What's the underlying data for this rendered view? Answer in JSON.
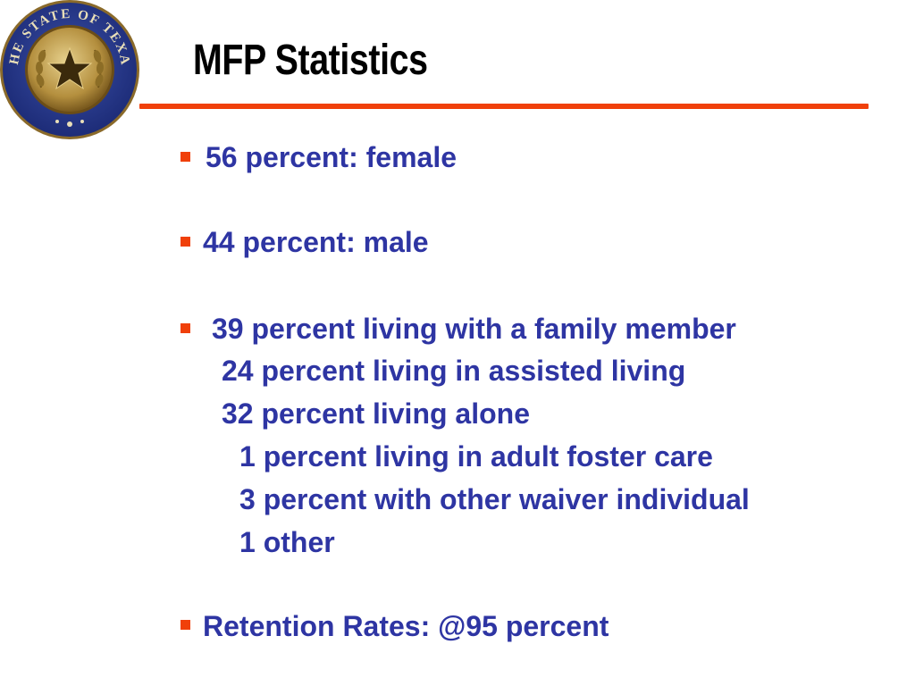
{
  "title": "MFP Statistics",
  "seal": {
    "icon": "texas-state-seal-icon",
    "lettering": "THE STATE OF TEXAS"
  },
  "colors": {
    "title": "#000000",
    "rule": "#f0400a",
    "bullet": "#f0400a",
    "body_text": "#2e35a3"
  },
  "bullets": [
    {
      "text": "56 percent: female"
    },
    {
      "text": "44 percent: male"
    },
    {
      "text": "39 percent living with a family member",
      "sub": [
        "24 percent living in assisted living",
        "32 percent living alone",
        "1 percent living in adult foster care",
        "3 percent with other waiver individual",
        "1 other"
      ]
    },
    {
      "text": "Retention Rates: @95 percent"
    }
  ]
}
